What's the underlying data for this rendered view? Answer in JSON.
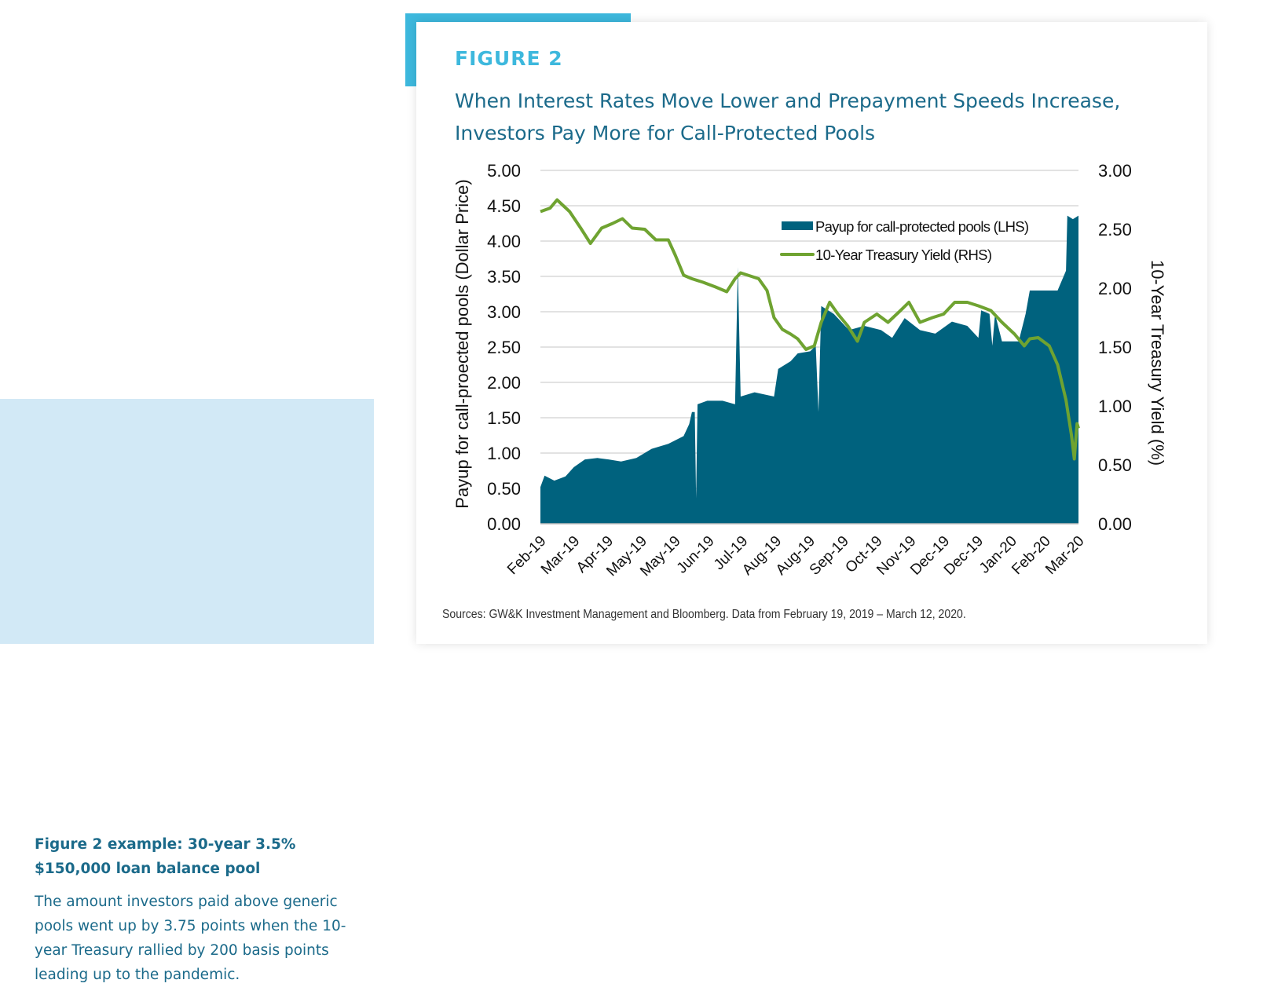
{
  "sidebar": {
    "heading": "Figure 2 example: 30-year 3.5% $150,000 loan balance pool",
    "body": "The amount investors paid above generic pools went up by 3.75 points when the 10-year Treasury rallied by 200 basis points leading up to the pandemic."
  },
  "figure_label": "FIGURE 2",
  "source_note": "Sources: GW&K Investment Management and Bloomberg. Data from February 19, 2019 – March 12, 2020.",
  "colors": {
    "area": "#00627e",
    "line": "#6fa331",
    "accent": "#3db8dd",
    "title": "#1b6a8a",
    "grid": "#d9d9d9"
  },
  "chart_data": {
    "type": "area+line",
    "title": "When Interest Rates Move Lower and Prepayment Speeds Increase, Investors Pay More for Call-Protected Pools",
    "ylabel_left": "Payup for call-proected pools (Dollar Price)",
    "ylabel_right": "10-Year Treasury Yield (%)",
    "ylim_left": [
      0,
      5
    ],
    "ylim_right": [
      0,
      3
    ],
    "yticks_left": [
      "0.00",
      "0.50",
      "1.00",
      "1.50",
      "2.00",
      "2.50",
      "3.00",
      "3.50",
      "4.00",
      "4.50",
      "5.00"
    ],
    "yticks_right": [
      "0.00",
      "0.50",
      "1.00",
      "1.50",
      "2.00",
      "2.50",
      "3.00"
    ],
    "xlim": [
      "2019-02-19",
      "2020-03-12"
    ],
    "xticks": [
      "Feb-19",
      "Mar-19",
      "Apr-19",
      "May-19",
      "May-19",
      "Jun-19",
      "Jul-19",
      "Aug-19",
      "Aug-19",
      "Sep-19",
      "Oct-19",
      "Nov-19",
      "Dec-19",
      "Dec-19",
      "Jan-20",
      "Feb-20",
      "Mar-20"
    ],
    "grid": true,
    "legend_placement": "top-right",
    "series": [
      {
        "name": "Payup for call-protected pools (LHS)",
        "axis": "left",
        "kind": "area",
        "points": [
          [
            "2019-02-19",
            0.52
          ],
          [
            "2019-02-22",
            0.68
          ],
          [
            "2019-03-01",
            0.61
          ],
          [
            "2019-03-09",
            0.67
          ],
          [
            "2019-03-15",
            0.8
          ],
          [
            "2019-03-23",
            0.91
          ],
          [
            "2019-04-01",
            0.93
          ],
          [
            "2019-04-09",
            0.91
          ],
          [
            "2019-04-18",
            0.88
          ],
          [
            "2019-04-29",
            0.93
          ],
          [
            "2019-05-10",
            1.06
          ],
          [
            "2019-05-22",
            1.13
          ],
          [
            "2019-06-02",
            1.24
          ],
          [
            "2019-06-06",
            1.41
          ],
          [
            "2019-06-08",
            1.58
          ],
          [
            "2019-06-10",
            1.58
          ],
          [
            "2019-06-11",
            0.36
          ],
          [
            "2019-06-12",
            1.69
          ],
          [
            "2019-06-19",
            1.74
          ],
          [
            "2019-06-30",
            1.74
          ],
          [
            "2019-07-09",
            1.69
          ],
          [
            "2019-07-11",
            3.63
          ],
          [
            "2019-07-13",
            1.8
          ],
          [
            "2019-07-23",
            1.86
          ],
          [
            "2019-08-06",
            1.8
          ],
          [
            "2019-08-09",
            2.19
          ],
          [
            "2019-08-18",
            2.3
          ],
          [
            "2019-08-23",
            2.41
          ],
          [
            "2019-09-01",
            2.44
          ],
          [
            "2019-09-05",
            2.52
          ],
          [
            "2019-09-07",
            1.58
          ],
          [
            "2019-09-09",
            3.08
          ],
          [
            "2019-09-18",
            2.97
          ],
          [
            "2019-09-29",
            2.74
          ],
          [
            "2019-10-10",
            2.8
          ],
          [
            "2019-10-22",
            2.74
          ],
          [
            "2019-10-30",
            2.63
          ],
          [
            "2019-11-08",
            2.91
          ],
          [
            "2019-11-19",
            2.74
          ],
          [
            "2019-11-30",
            2.69
          ],
          [
            "2019-12-12",
            2.86
          ],
          [
            "2019-12-23",
            2.8
          ],
          [
            "2019-12-31",
            2.63
          ],
          [
            "2020-01-02",
            3.02
          ],
          [
            "2020-01-08",
            2.97
          ],
          [
            "2020-01-10",
            2.52
          ],
          [
            "2020-01-12",
            2.97
          ],
          [
            "2020-01-17",
            2.58
          ],
          [
            "2020-01-29",
            2.58
          ],
          [
            "2020-02-03",
            2.97
          ],
          [
            "2020-02-06",
            3.3
          ],
          [
            "2020-02-18",
            3.3
          ],
          [
            "2020-02-26",
            3.3
          ],
          [
            "2020-03-03",
            3.58
          ],
          [
            "2020-03-04",
            4.36
          ],
          [
            "2020-03-08",
            4.31
          ],
          [
            "2020-03-12",
            4.36
          ]
        ]
      },
      {
        "name": "10-Year Treasury Yield (RHS)",
        "axis": "right",
        "kind": "line",
        "points": [
          [
            "2019-02-19",
            2.65
          ],
          [
            "2019-02-26",
            2.68
          ],
          [
            "2019-03-03",
            2.75
          ],
          [
            "2019-03-12",
            2.65
          ],
          [
            "2019-03-20",
            2.51
          ],
          [
            "2019-03-27",
            2.38
          ],
          [
            "2019-04-04",
            2.51
          ],
          [
            "2019-04-12",
            2.55
          ],
          [
            "2019-04-19",
            2.59
          ],
          [
            "2019-04-26",
            2.51
          ],
          [
            "2019-05-05",
            2.5
          ],
          [
            "2019-05-13",
            2.41
          ],
          [
            "2019-05-22",
            2.41
          ],
          [
            "2019-05-27",
            2.28
          ],
          [
            "2019-06-02",
            2.11
          ],
          [
            "2019-06-08",
            2.08
          ],
          [
            "2019-06-16",
            2.05
          ],
          [
            "2019-06-25",
            2.01
          ],
          [
            "2019-07-03",
            1.97
          ],
          [
            "2019-07-09",
            2.08
          ],
          [
            "2019-07-13",
            2.13
          ],
          [
            "2019-07-26",
            2.08
          ],
          [
            "2019-08-01",
            1.98
          ],
          [
            "2019-08-06",
            1.75
          ],
          [
            "2019-08-12",
            1.65
          ],
          [
            "2019-08-18",
            1.61
          ],
          [
            "2019-08-23",
            1.57
          ],
          [
            "2019-08-29",
            1.48
          ],
          [
            "2019-09-04",
            1.51
          ],
          [
            "2019-09-09",
            1.71
          ],
          [
            "2019-09-15",
            1.88
          ],
          [
            "2019-09-21",
            1.78
          ],
          [
            "2019-09-28",
            1.68
          ],
          [
            "2019-10-05",
            1.55
          ],
          [
            "2019-10-10",
            1.71
          ],
          [
            "2019-10-19",
            1.78
          ],
          [
            "2019-10-27",
            1.71
          ],
          [
            "2019-11-05",
            1.81
          ],
          [
            "2019-11-11",
            1.88
          ],
          [
            "2019-11-19",
            1.71
          ],
          [
            "2019-11-28",
            1.75
          ],
          [
            "2019-12-06",
            1.78
          ],
          [
            "2019-12-14",
            1.88
          ],
          [
            "2019-12-23",
            1.88
          ],
          [
            "2019-12-31",
            1.85
          ],
          [
            "2020-01-09",
            1.81
          ],
          [
            "2020-01-17",
            1.71
          ],
          [
            "2020-01-26",
            1.61
          ],
          [
            "2020-02-02",
            1.51
          ],
          [
            "2020-02-06",
            1.57
          ],
          [
            "2020-02-12",
            1.58
          ],
          [
            "2020-02-20",
            1.51
          ],
          [
            "2020-02-26",
            1.35
          ],
          [
            "2020-03-03",
            1.05
          ],
          [
            "2020-03-07",
            0.75
          ],
          [
            "2020-03-09",
            0.55
          ],
          [
            "2020-03-11",
            0.85
          ],
          [
            "2020-03-12",
            0.81
          ]
        ]
      }
    ]
  }
}
